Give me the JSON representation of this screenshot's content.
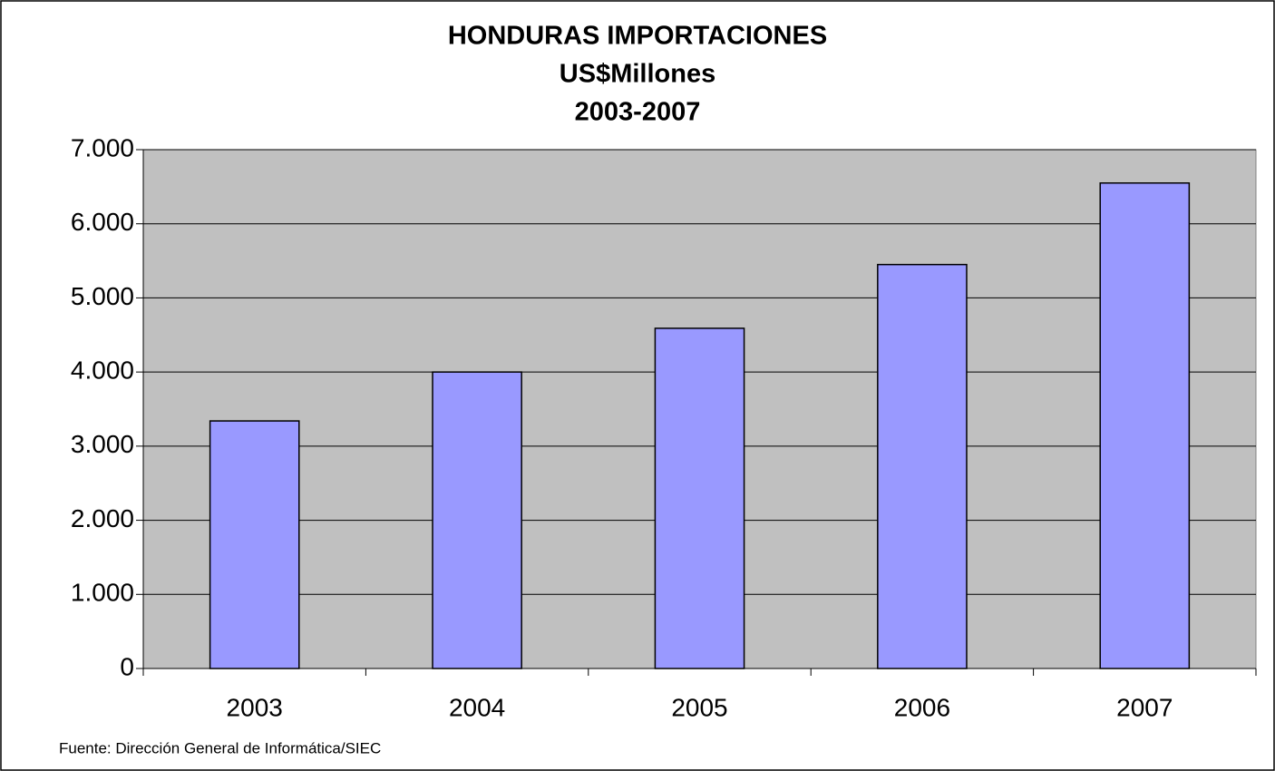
{
  "chart_data": {
    "type": "bar",
    "title": "HONDURAS IMPORTACIONES",
    "subtitle": "US$Millones",
    "period": "2003-2007",
    "source": "Fuente: Dirección General de Informática/SIEC",
    "categories": [
      "2003",
      "2004",
      "2005",
      "2006",
      "2007"
    ],
    "values": [
      3340,
      4000,
      4590,
      5450,
      6550
    ],
    "color": "#9999ff",
    "ylim": [
      0,
      7000
    ],
    "yticks": [
      0,
      {
        "value": 1000,
        "label": "1.000"
      },
      {
        "value": 2000,
        "label": "2.000"
      },
      {
        "value": 3000,
        "label": "3.000"
      },
      {
        "value": 4000,
        "label": "4.000"
      },
      {
        "value": 5000,
        "label": "5.000"
      },
      {
        "value": 6000,
        "label": "6.000"
      },
      {
        "value": 7000,
        "label": "7.000"
      }
    ],
    "grid": true
  }
}
